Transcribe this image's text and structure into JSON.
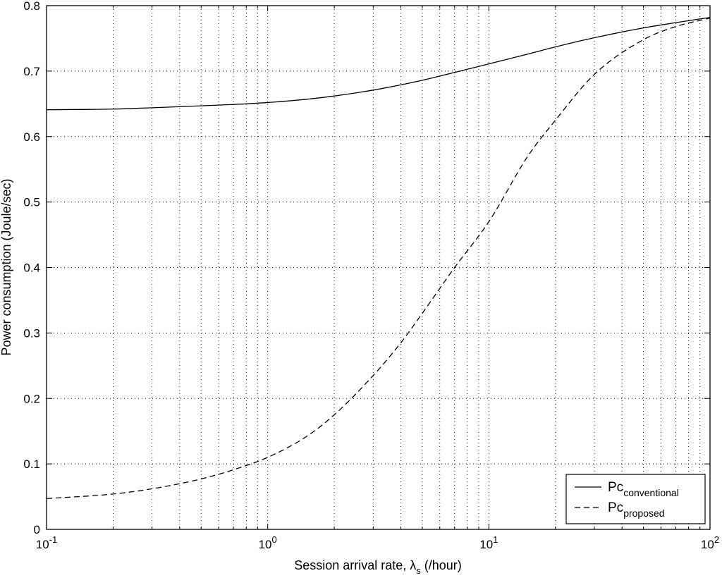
{
  "chart_data": {
    "type": "line",
    "xscale": "log",
    "xlim": [
      0.1,
      100
    ],
    "ylim": [
      0,
      0.8
    ],
    "grid": true,
    "xlabel": "Session arrival rate, λs (/hour)",
    "xlabel_main": "Session arrival rate, λ",
    "xlabel_sub": "s",
    "xlabel_tail": " (/hour)",
    "ylabel": "Power consumption (Joule/sec)",
    "xticks": [
      0.1,
      1,
      10,
      100
    ],
    "xtick_labels": [
      {
        "base": "10",
        "exp": "-1"
      },
      {
        "base": "10",
        "exp": "0"
      },
      {
        "base": "10",
        "exp": "1"
      },
      {
        "base": "10",
        "exp": "2"
      }
    ],
    "yticks": [
      0,
      0.1,
      0.2,
      0.3,
      0.4,
      0.5,
      0.6,
      0.7,
      0.8
    ],
    "ytick_labels": [
      "0",
      "0.1",
      "0.2",
      "0.3",
      "0.4",
      "0.5",
      "0.6",
      "0.7",
      "0.8"
    ],
    "legend_position": "bottom-right",
    "x": [
      0.1,
      0.2,
      0.3,
      0.5,
      0.7,
      1,
      1.5,
      2,
      3,
      4,
      5,
      7,
      10,
      15,
      20,
      30,
      50,
      70,
      100
    ],
    "series": [
      {
        "name": "Pc conventional",
        "name_main": "Pc",
        "name_sub": "conventional",
        "style": "solid",
        "values": [
          0.641,
          0.642,
          0.644,
          0.647,
          0.649,
          0.652,
          0.657,
          0.662,
          0.671,
          0.679,
          0.686,
          0.698,
          0.711,
          0.726,
          0.737,
          0.751,
          0.766,
          0.774,
          0.782
        ]
      },
      {
        "name": "Pc proposed",
        "name_main": "Pc",
        "name_sub": "proposed",
        "style": "dashed",
        "values": [
          0.047,
          0.054,
          0.062,
          0.077,
          0.091,
          0.11,
          0.142,
          0.175,
          0.235,
          0.285,
          0.33,
          0.4,
          0.47,
          0.57,
          0.625,
          0.695,
          0.748,
          0.768,
          0.781
        ]
      }
    ]
  }
}
